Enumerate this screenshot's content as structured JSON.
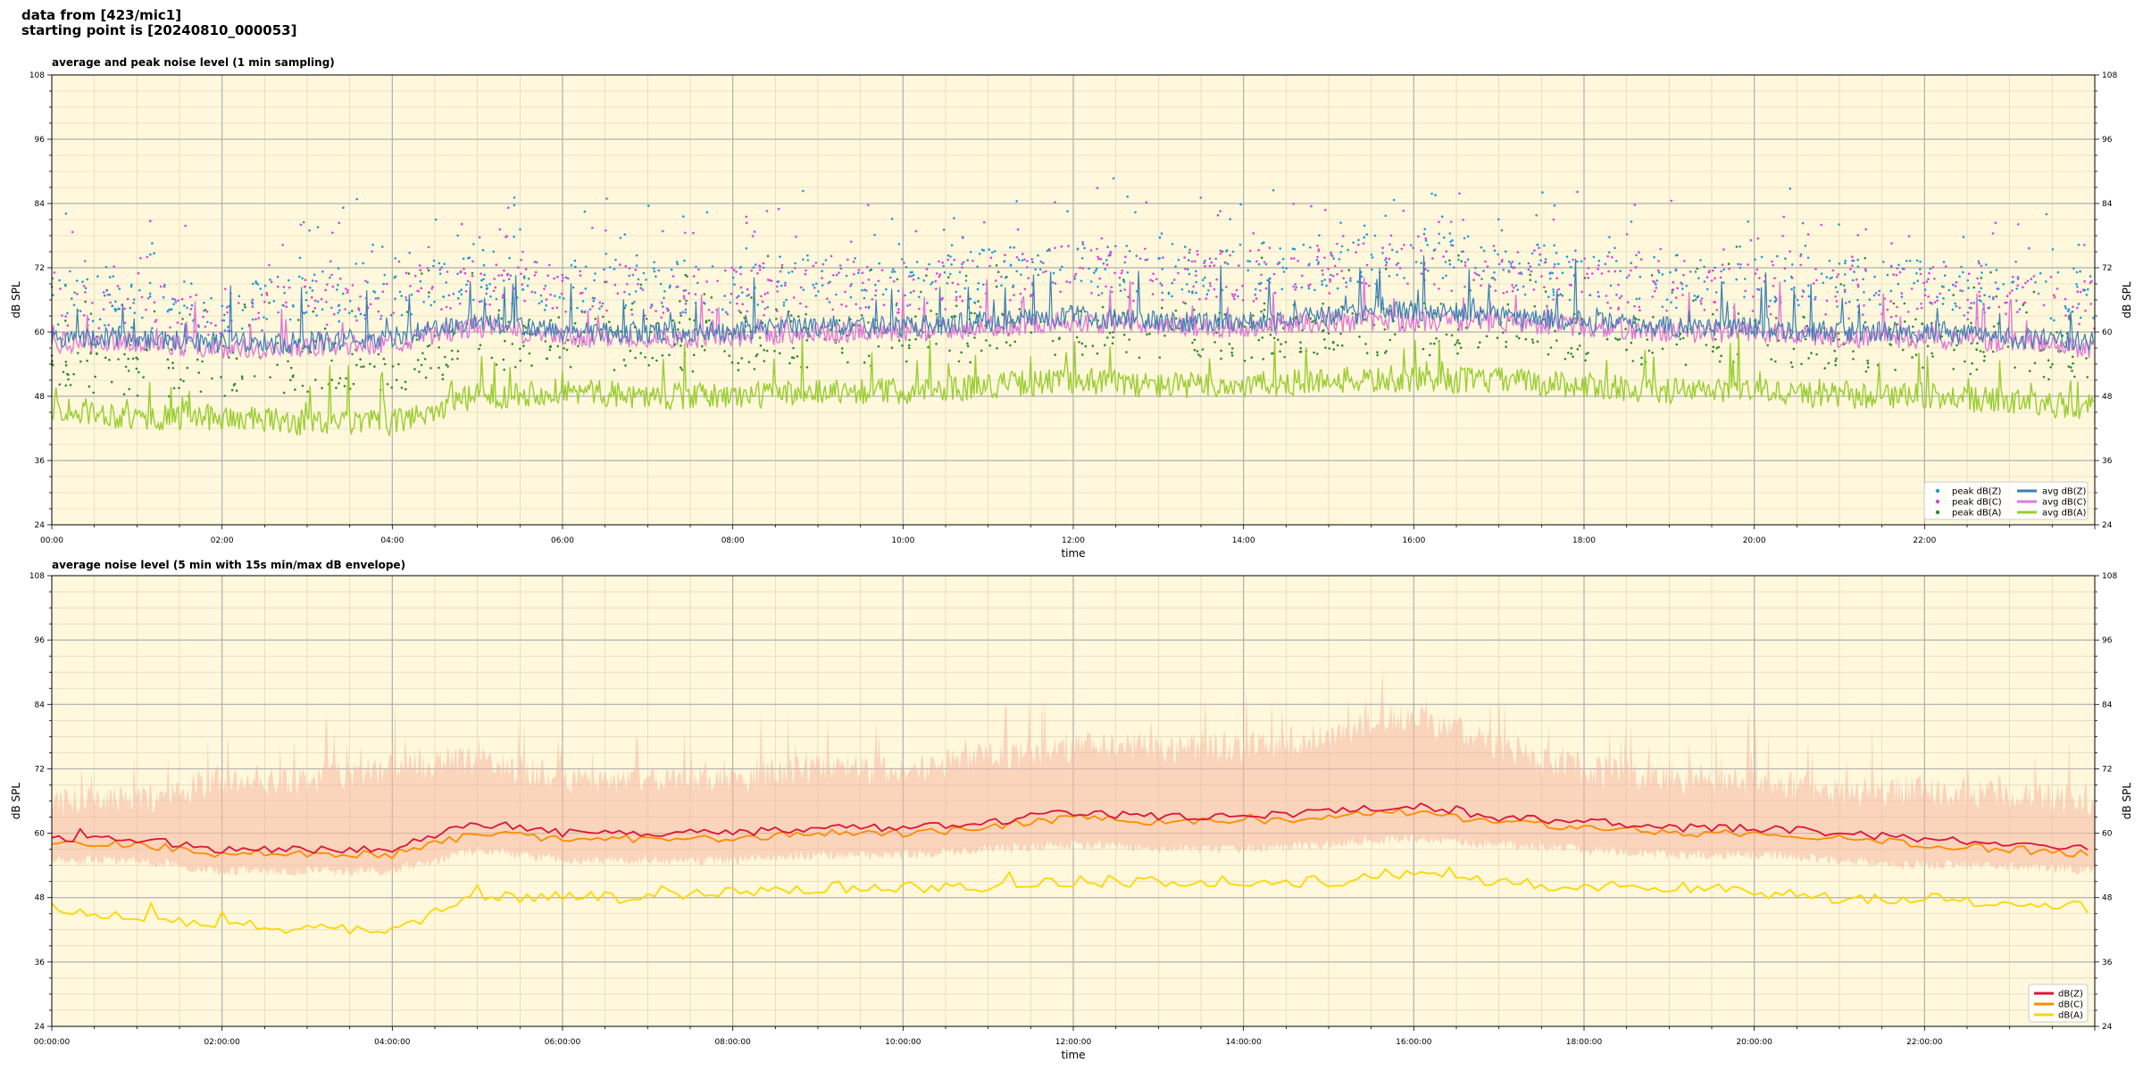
{
  "header": {
    "line1": "data from [423/mic1]",
    "line2": "starting point is [20240810_000053]"
  },
  "colors": {
    "background": "#fff8dc",
    "peak_z": "#1f9bd9",
    "peak_c": "#e040e0",
    "peak_a": "#2e8b2e",
    "avg_z": "#3a7fb5",
    "avg_c": "#e07ad8",
    "avg_a": "#9acd32",
    "dbz": "#dc143c",
    "dbc": "#ff8c00",
    "dba": "#ffd700",
    "envelope": "#f5b7a0"
  },
  "chart_data": [
    {
      "type": "line",
      "title": "average and peak noise level (1 min sampling)",
      "xlabel": "time",
      "ylabel": "dB SPL",
      "xlim": [
        0,
        24
      ],
      "ylim": [
        24,
        108
      ],
      "yticks": [
        "108",
        "96",
        "84",
        "72",
        "60",
        "48",
        "36",
        "24"
      ],
      "xticks": [
        "00:00",
        "02:00",
        "04:00",
        "06:00",
        "08:00",
        "10:00",
        "12:00",
        "14:00",
        "16:00",
        "18:00",
        "20:00",
        "22:00"
      ],
      "grid": true,
      "legend_position": "bottom-right",
      "legend": [
        "peak dB(Z)",
        "peak dB(C)",
        "peak dB(A)",
        "avg dB(Z)",
        "avg dB(C)",
        "avg dB(A)"
      ],
      "series_anchor_hours": [
        0,
        1,
        2,
        3,
        4,
        5,
        6,
        7,
        8,
        9,
        10,
        11,
        12,
        13,
        14,
        15,
        16,
        17,
        18,
        19,
        20,
        21,
        22,
        23,
        24
      ],
      "series": [
        {
          "name": "avg dB(Z)",
          "values": [
            59,
            59,
            58,
            58,
            59,
            62,
            60,
            60,
            60,
            61,
            61,
            62,
            63,
            62,
            62,
            63,
            64,
            63,
            62,
            61,
            61,
            60,
            60,
            59,
            58
          ]
        },
        {
          "name": "avg dB(C)",
          "values": [
            58,
            58,
            57,
            57,
            58,
            61,
            59,
            59,
            59,
            60,
            60,
            61,
            62,
            61,
            61,
            62,
            62,
            62,
            61,
            60,
            60,
            59,
            59,
            58,
            57
          ]
        },
        {
          "name": "avg dB(A)",
          "values": [
            46,
            44,
            44,
            43,
            43,
            48,
            49,
            48,
            48,
            49,
            49,
            50,
            51,
            50,
            50,
            51,
            51,
            51,
            50,
            49,
            49,
            48,
            48,
            47,
            46
          ]
        },
        {
          "name": "peak dB(Z)",
          "values": [
            64,
            64,
            63,
            65,
            66,
            69,
            67,
            67,
            67,
            68,
            68,
            69,
            71,
            70,
            70,
            71,
            73,
            71,
            69,
            68,
            68,
            67,
            67,
            66,
            65
          ]
        },
        {
          "name": "peak dB(C)",
          "values": [
            63,
            63,
            62,
            64,
            65,
            68,
            66,
            66,
            66,
            67,
            67,
            68,
            70,
            69,
            69,
            70,
            72,
            70,
            68,
            67,
            67,
            66,
            66,
            65,
            64
          ]
        },
        {
          "name": "peak dB(A)",
          "values": [
            53,
            51,
            51,
            52,
            52,
            56,
            57,
            56,
            56,
            57,
            57,
            58,
            59,
            58,
            58,
            59,
            59,
            59,
            58,
            57,
            57,
            56,
            56,
            55,
            54
          ]
        }
      ]
    },
    {
      "type": "line",
      "title": "average noise level (5 min with 15s min/max dB envelope)",
      "xlabel": "time",
      "ylabel": "dB SPL",
      "xlim": [
        0,
        24
      ],
      "ylim": [
        24,
        108
      ],
      "yticks": [
        "108",
        "96",
        "84",
        "72",
        "60",
        "48",
        "36",
        "24"
      ],
      "xticks": [
        "00:00:00",
        "02:00:00",
        "04:00:00",
        "06:00:00",
        "08:00:00",
        "10:00:00",
        "12:00:00",
        "14:00:00",
        "16:00:00",
        "18:00:00",
        "20:00:00",
        "22:00:00"
      ],
      "grid": true,
      "legend_position": "bottom-right",
      "legend": [
        "dB(Z)",
        "dB(C)",
        "dB(A)"
      ],
      "series_anchor_hours": [
        0,
        1,
        2,
        3,
        4,
        5,
        6,
        7,
        8,
        9,
        10,
        11,
        12,
        13,
        14,
        15,
        16,
        17,
        18,
        19,
        20,
        21,
        22,
        23,
        24
      ],
      "series": [
        {
          "name": "dB(Z)",
          "values": [
            59,
            59,
            57,
            57,
            57,
            62,
            60,
            60,
            60,
            61,
            61,
            62,
            64,
            63,
            63,
            64,
            65,
            63,
            62,
            61,
            61,
            60,
            59,
            58,
            57
          ]
        },
        {
          "name": "dB(C)",
          "values": [
            58,
            58,
            56,
            56,
            56,
            60,
            59,
            59,
            59,
            60,
            60,
            61,
            63,
            62,
            62,
            63,
            64,
            62,
            61,
            60,
            60,
            59,
            58,
            57,
            56
          ]
        },
        {
          "name": "dB(A)",
          "values": [
            46,
            44,
            43,
            42,
            42,
            48,
            48,
            48,
            49,
            50,
            50,
            50,
            51,
            51,
            51,
            51,
            52,
            51,
            50,
            50,
            49,
            48,
            48,
            47,
            46
          ]
        },
        {
          "name": "envelope max",
          "values": [
            66,
            66,
            70,
            70,
            72,
            74,
            70,
            70,
            70,
            72,
            72,
            74,
            76,
            76,
            76,
            78,
            82,
            76,
            72,
            70,
            70,
            68,
            68,
            67,
            66
          ]
        },
        {
          "name": "envelope min",
          "values": [
            55,
            55,
            53,
            53,
            53,
            57,
            55,
            55,
            55,
            56,
            56,
            57,
            58,
            57,
            57,
            58,
            59,
            58,
            57,
            56,
            56,
            55,
            54,
            54,
            53
          ]
        }
      ]
    }
  ]
}
